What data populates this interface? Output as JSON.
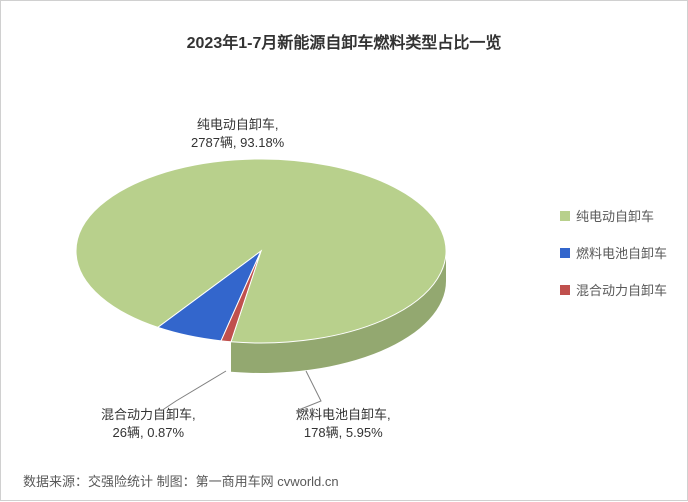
{
  "chart": {
    "type": "pie",
    "title": "2023年1-7月新能源自卸车燃料类型占比一览",
    "title_fontsize": 16,
    "title_color": "#333333",
    "background_color": "#ffffff",
    "slices": [
      {
        "name": "纯电动自卸车",
        "count": 2787,
        "percent": 93.18,
        "color": "#b8d08c",
        "side_color": "#93a870"
      },
      {
        "name": "燃料电池自卸车",
        "count": 178,
        "percent": 5.95,
        "color": "#3366cc",
        "side_color": "#284f9e"
      },
      {
        "name": "混合动力自卸车",
        "count": 26,
        "percent": 0.87,
        "color": "#c0504d",
        "side_color": "#96403d"
      }
    ],
    "legend_items": [
      {
        "label": "纯电动自卸车",
        "color": "#b8d08c"
      },
      {
        "label": "燃料电池自卸车",
        "color": "#3366cc"
      },
      {
        "label": "混合动力自卸车",
        "color": "#c0504d"
      }
    ],
    "legend_fontsize": 13,
    "label_fontsize": 13,
    "data_labels": {
      "label0_line1": "纯电动自卸车,",
      "label0_line2": "2787辆, 93.18%",
      "label1_line1": "燃料电池自卸车,",
      "label1_line2": "178辆, 5.95%",
      "label2_line1": "混合动力自卸车,",
      "label2_line2": "26辆, 0.87%"
    },
    "source": "数据来源：交强险统计 制图：第一商用车网 cvworld.cn",
    "source_fontsize": 13,
    "pie_depth": 30,
    "pie_rx": 185,
    "pie_ry": 92
  }
}
